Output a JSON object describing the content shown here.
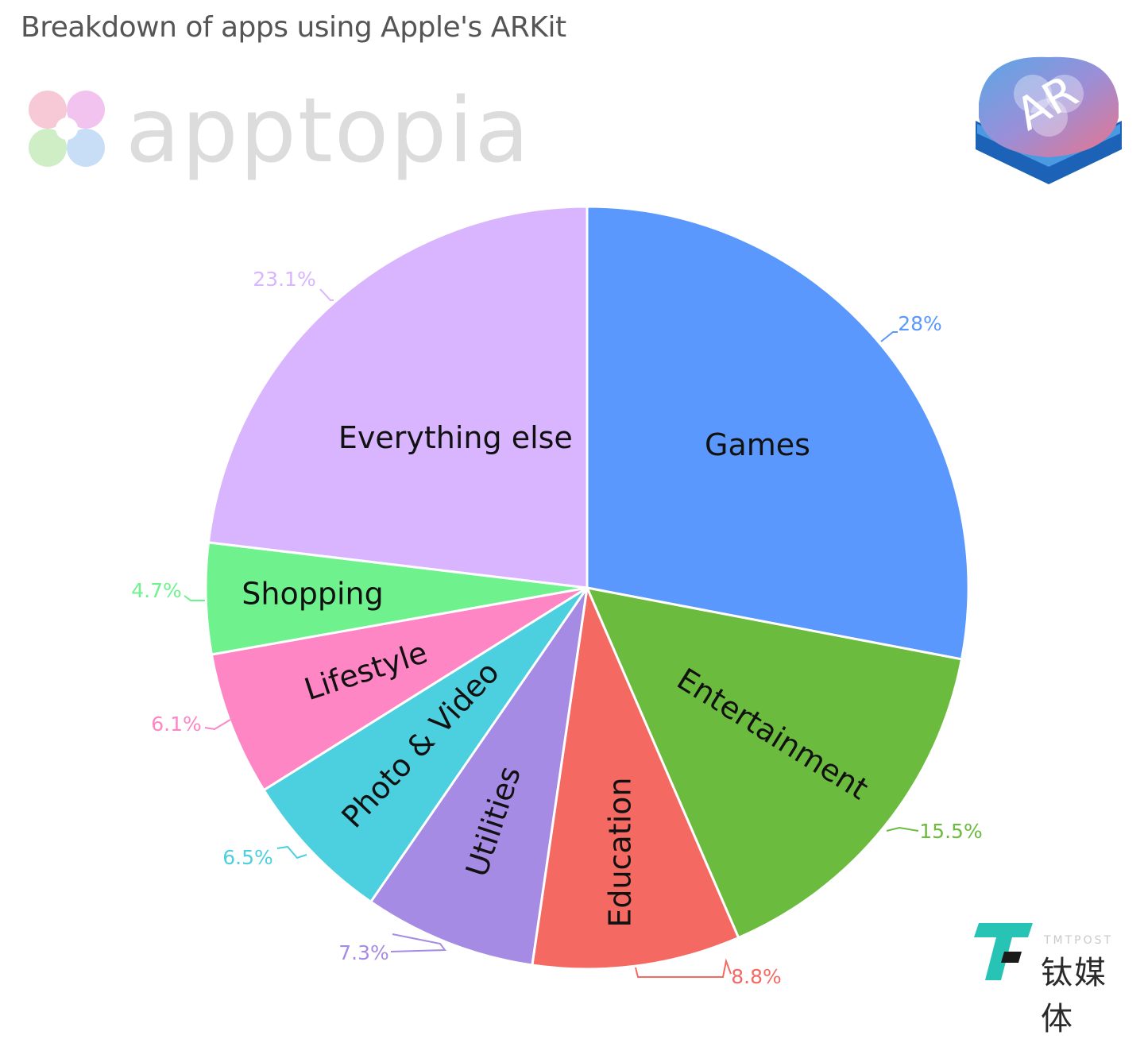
{
  "header": {
    "title": "Breakdown of apps using Apple's ARKit"
  },
  "brand": {
    "name": "apptopia"
  },
  "badge": {
    "text": "AR"
  },
  "watermark": {
    "small": "TMTPOST",
    "cn": "钛媒体"
  },
  "colors": {
    "games": "#5a98fd",
    "entertainment": "#6bbb3e",
    "education": "#f46a62",
    "utilities": "#a58be4",
    "photo_video": "#4ccfde",
    "lifestyle": "#fe86c4",
    "shopping": "#6ff28e",
    "everything_else": "#d8b5fe"
  },
  "chart_data": {
    "type": "pie",
    "title": "Breakdown of apps using Apple's ARKit",
    "start": "12 o'clock, clockwise",
    "slices": [
      {
        "label": "Games",
        "value": 28,
        "pct_label": "28%",
        "color": "#5a98fd"
      },
      {
        "label": "Entertainment",
        "value": 15.5,
        "pct_label": "15.5%",
        "color": "#6bbb3e"
      },
      {
        "label": "Education",
        "value": 8.8,
        "pct_label": "8.8%",
        "color": "#f46a62"
      },
      {
        "label": "Utilities",
        "value": 7.3,
        "pct_label": "7.3%",
        "color": "#a58be4"
      },
      {
        "label": "Photo & Video",
        "value": 6.5,
        "pct_label": "6.5%",
        "color": "#4ccfde"
      },
      {
        "label": "Lifestyle",
        "value": 6.1,
        "pct_label": "6.1%",
        "color": "#fe86c4"
      },
      {
        "label": "Shopping",
        "value": 4.7,
        "pct_label": "4.7%",
        "color": "#6ff28e"
      },
      {
        "label": "Everything else",
        "value": 23.1,
        "pct_label": "23.1%",
        "color": "#d8b5fe"
      }
    ]
  }
}
